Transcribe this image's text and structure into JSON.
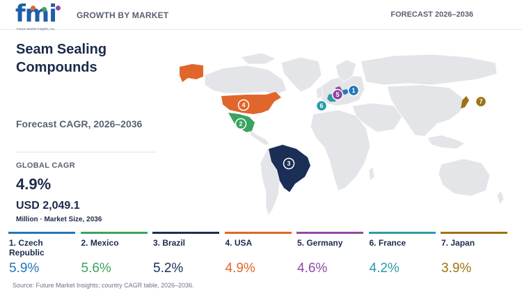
{
  "header": {
    "logo_text": "fmi",
    "logo_subtext": "Future Market Insights, Inc.",
    "section_label": "GROWTH BY MARKET",
    "forecast_label": "FORECAST 2026–2036"
  },
  "summary": {
    "title": "Seam Sealing Compounds",
    "cagr_label": "Forecast CAGR, 2026–2036",
    "global_cagr_label": "GLOBAL CAGR",
    "global_cagr_value": "4.9%",
    "market_size_value": "USD 2,049.1",
    "market_size_unit": "Million · Market Size, 2036"
  },
  "colors": {
    "czech": "#2576b8",
    "mexico": "#3aa35f",
    "brazil": "#1b2e55",
    "usa": "#e0662c",
    "germany": "#8e4aa0",
    "france": "#2a9ca8",
    "japan": "#9b7414",
    "land": "#e4e5e8"
  },
  "chart_data": {
    "type": "map",
    "title": "Seam Sealing Compounds",
    "metric": "Forecast CAGR, 2026–2036",
    "countries": [
      {
        "rank": "1",
        "name": "1. Czech Republic",
        "cagr": 5.9,
        "label": "5.9%",
        "color": "#2576b8"
      },
      {
        "rank": "2",
        "name": "2. Mexico",
        "cagr": 5.6,
        "label": "5.6%",
        "color": "#3aa35f"
      },
      {
        "rank": "3",
        "name": "3. Brazil",
        "cagr": 5.2,
        "label": "5.2%",
        "color": "#1b2e55"
      },
      {
        "rank": "4",
        "name": "4. USA",
        "cagr": 4.9,
        "label": "4.9%",
        "color": "#e0662c"
      },
      {
        "rank": "5",
        "name": "5. Germany",
        "cagr": 4.6,
        "label": "4.6%",
        "color": "#8e4aa0"
      },
      {
        "rank": "6",
        "name": "6. France",
        "cagr": 4.2,
        "label": "4.2%",
        "color": "#2a9ca8"
      },
      {
        "rank": "7",
        "name": "7. Japan",
        "cagr": 3.9,
        "label": "3.9%",
        "color": "#9b7414"
      }
    ]
  },
  "footer": {
    "source": "Source: Future Market Insights; country CAGR table, 2026–2036."
  }
}
